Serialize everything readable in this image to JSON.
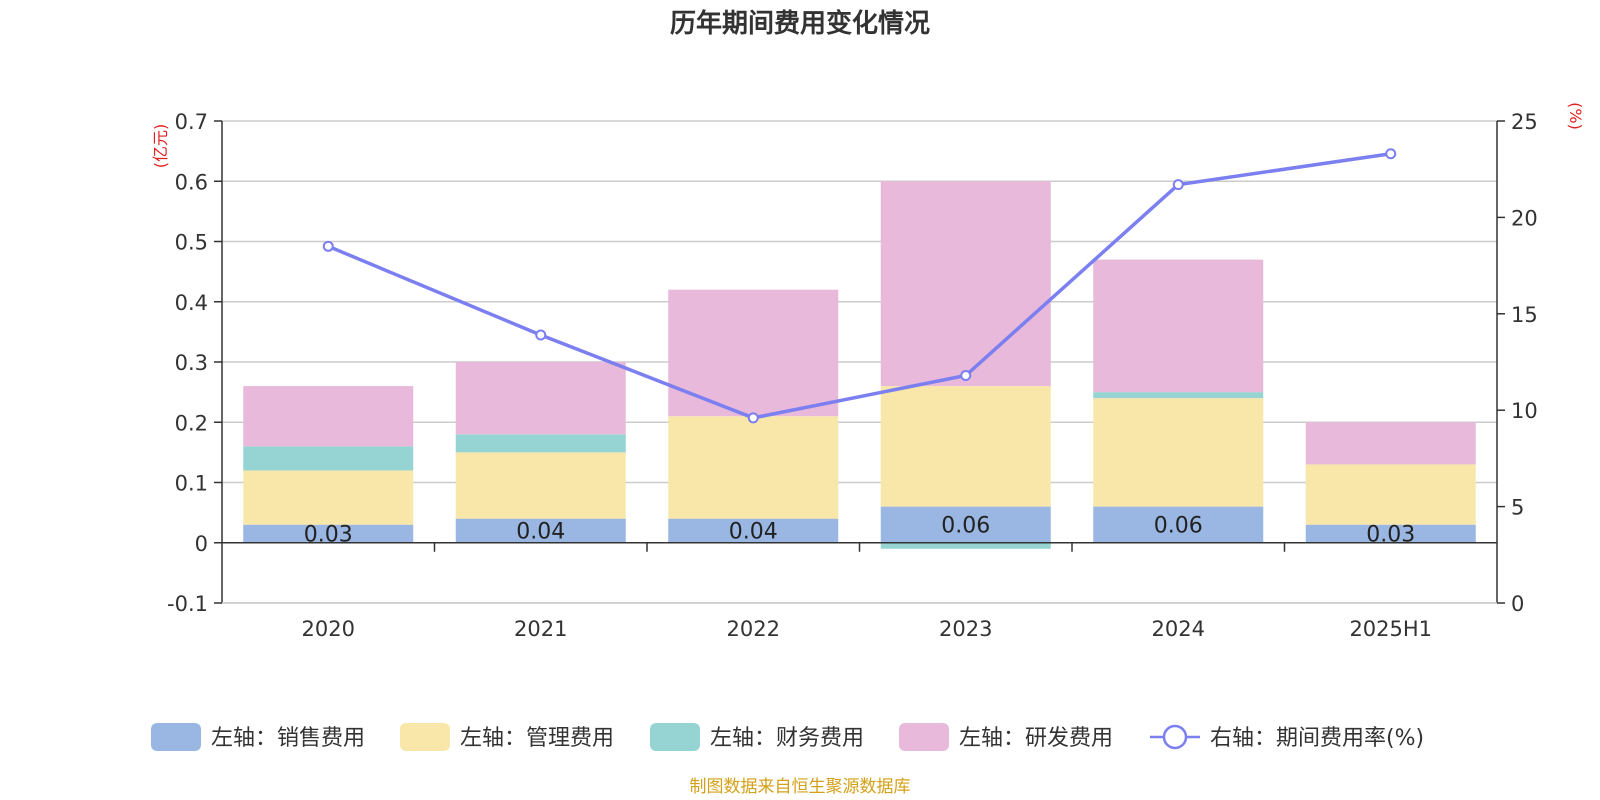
{
  "chart_data": {
    "type": "bar",
    "stacked": true,
    "title": "历年期间费用变化情况",
    "categories": [
      "2020",
      "2021",
      "2022",
      "2023",
      "2024",
      "2025H1"
    ],
    "left_axis": {
      "unit": "(亿元)",
      "range": [
        -0.1,
        0.7
      ],
      "ticks": [
        "-0.1",
        "0",
        "0.1",
        "0.2",
        "0.3",
        "0.4",
        "0.5",
        "0.6",
        "0.7"
      ]
    },
    "right_axis": {
      "unit": "(%)",
      "range": [
        0,
        25
      ],
      "ticks": [
        "0",
        "5",
        "10",
        "15",
        "20",
        "25"
      ]
    },
    "series": [
      {
        "name": "左轴：销售费用",
        "type": "bar",
        "color": "#9ab6e2",
        "values": [
          0.03,
          0.04,
          0.04,
          0.06,
          0.06,
          0.03
        ],
        "labels": [
          "0.03",
          "0.04",
          "0.04",
          "0.06",
          "0.06",
          "0.03"
        ]
      },
      {
        "name": "左轴：管理费用",
        "type": "bar",
        "color": "#f8e7a8",
        "values": [
          0.09,
          0.11,
          0.17,
          0.2,
          0.18,
          0.1
        ]
      },
      {
        "name": "左轴：财务费用",
        "type": "bar",
        "color": "#96d4d4",
        "values": [
          0.04,
          0.03,
          0.0,
          -0.01,
          0.01,
          0.0
        ]
      },
      {
        "name": "左轴：研发费用",
        "type": "bar",
        "color": "#e8b9da",
        "values": [
          0.1,
          0.12,
          0.21,
          0.34,
          0.22,
          0.07
        ]
      },
      {
        "name": "右轴：期间费用率(%)",
        "type": "line",
        "axis": "right",
        "color": "#7b7ff0",
        "values": [
          18.5,
          13.9,
          9.6,
          11.8,
          21.7,
          23.3
        ]
      }
    ],
    "legend_position": "bottom",
    "grid": true
  },
  "footer": {
    "source": "制图数据来自恒生聚源数据库"
  },
  "colors": {
    "axis_unit": "#e02020",
    "source": "#d4a017",
    "grid": "#cccccc",
    "axis": "#333333"
  }
}
